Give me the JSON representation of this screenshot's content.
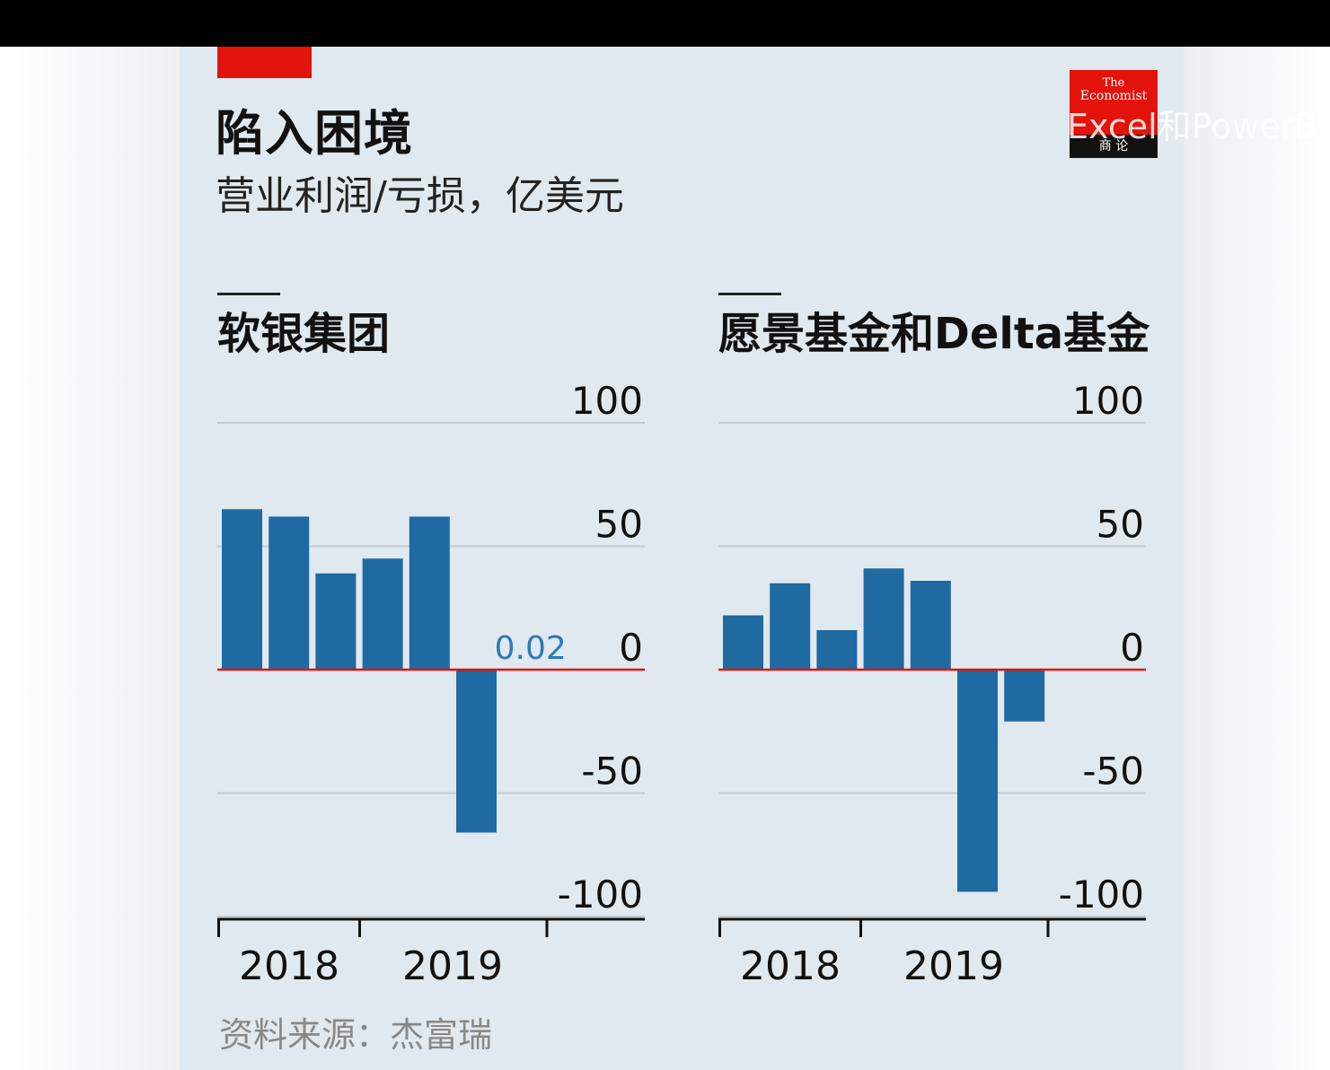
{
  "title": "陷入困境",
  "subtitle": "营业利润/亏损，亿美元",
  "source": "资料来源：杰富瑞",
  "logo": {
    "line1": "The",
    "line2": "Economist",
    "line3": "商 论"
  },
  "watermark": "Excel和PowerBI",
  "colors": {
    "bar": "#1f6aa1",
    "zero_line": "#e3120b",
    "grid": "#c4ccd2",
    "background": "#e0e9ef",
    "accent": "#e3120b",
    "annotation": "#2a7ab8"
  },
  "chart_data": [
    {
      "type": "bar",
      "title": "软银集团",
      "ylim": [
        -100,
        100
      ],
      "yticks": [
        100,
        50,
        0,
        -50,
        -100
      ],
      "x_tick_labels": [
        "2018",
        "2019"
      ],
      "values": [
        65,
        62,
        39,
        45,
        62,
        -66,
        0.02
      ],
      "annotations": [
        {
          "index": 6,
          "text": "0.02"
        }
      ],
      "grid": true
    },
    {
      "type": "bar",
      "title": "愿景基金和Delta基金",
      "ylim": [
        -100,
        100
      ],
      "yticks": [
        100,
        50,
        0,
        -50,
        -100
      ],
      "x_tick_labels": [
        "2018",
        "2019"
      ],
      "values": [
        22,
        35,
        16,
        41,
        36,
        -90,
        -21
      ],
      "grid": true
    }
  ]
}
